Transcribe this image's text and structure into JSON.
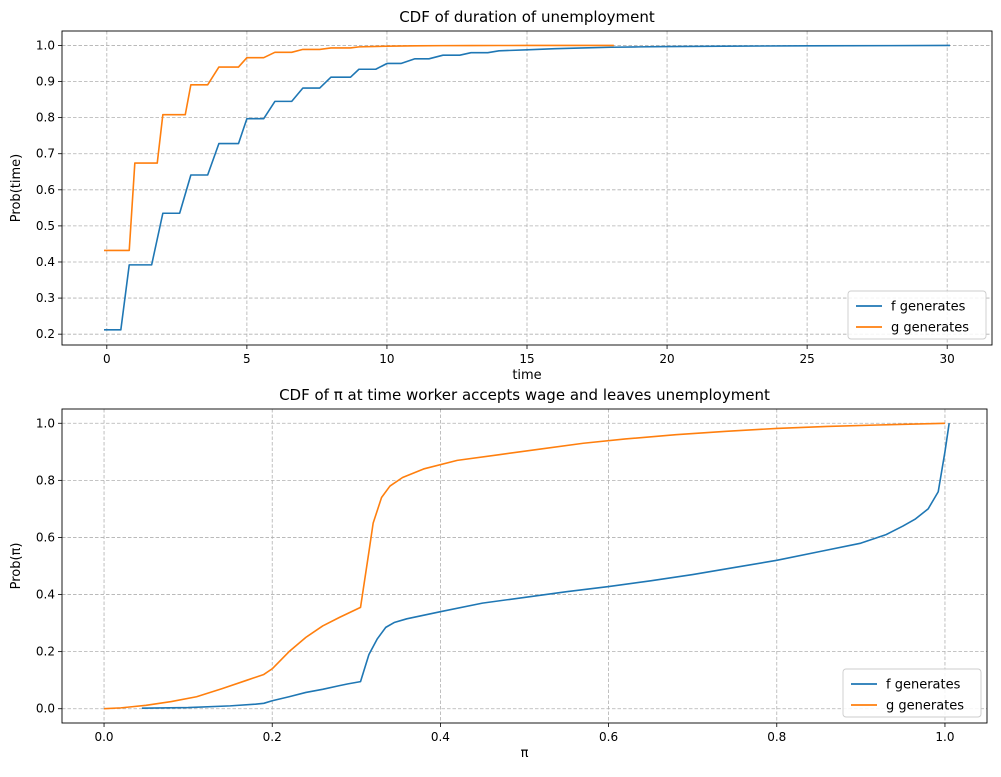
{
  "chart_data": [
    {
      "type": "line",
      "title": "CDF of duration of unemployment",
      "xlabel": "time",
      "ylabel": "Prob(time)",
      "xlim": [
        -1.6,
        31.6
      ],
      "ylim": [
        0.17,
        1.04
      ],
      "xticks": [
        0,
        5,
        10,
        15,
        20,
        25,
        30
      ],
      "yticks": [
        0.2,
        0.3,
        0.4,
        0.5,
        0.6,
        0.7,
        0.8,
        0.9,
        1.0
      ],
      "xtick_labels": [
        "0",
        "5",
        "10",
        "15",
        "20",
        "25",
        "30"
      ],
      "ytick_labels": [
        "0.2",
        "0.3",
        "0.4",
        "0.5",
        "0.6",
        "0.7",
        "0.8",
        "0.9",
        "1.0"
      ],
      "grid": true,
      "legend_position": "lower right",
      "series": [
        {
          "name": "f generates",
          "color": "#1f77b4",
          "x": [
            -0.1,
            0.5,
            0.8,
            1.6,
            2.0,
            2.6,
            3.0,
            3.6,
            4.0,
            4.7,
            5.0,
            5.6,
            6.0,
            6.6,
            7.0,
            7.6,
            8.0,
            8.7,
            9.0,
            9.6,
            10.0,
            10.5,
            11.0,
            11.5,
            12.0,
            12.6,
            13.0,
            13.6,
            14.0,
            15.0,
            16.0,
            17.0,
            18.0,
            19.0,
            20.0,
            22.0,
            25.0,
            28.0,
            30.1
          ],
          "y": [
            0.212,
            0.212,
            0.392,
            0.392,
            0.535,
            0.535,
            0.641,
            0.641,
            0.728,
            0.728,
            0.797,
            0.797,
            0.845,
            0.845,
            0.882,
            0.882,
            0.912,
            0.912,
            0.934,
            0.934,
            0.95,
            0.95,
            0.963,
            0.963,
            0.973,
            0.973,
            0.98,
            0.98,
            0.985,
            0.988,
            0.991,
            0.993,
            0.995,
            0.996,
            0.997,
            0.998,
            0.999,
            0.9995,
            1.0
          ]
        },
        {
          "name": "g generates",
          "color": "#ff7f0e",
          "x": [
            -0.1,
            0.8,
            1.0,
            1.8,
            2.0,
            2.8,
            3.0,
            3.6,
            4.0,
            4.7,
            5.0,
            5.6,
            6.0,
            6.6,
            7.0,
            7.6,
            8.0,
            8.7,
            9.0,
            10.0,
            11.0,
            12.0,
            13.0,
            14.0,
            15.0,
            16.0,
            17.0,
            18.1
          ],
          "y": [
            0.432,
            0.432,
            0.674,
            0.674,
            0.808,
            0.808,
            0.891,
            0.891,
            0.94,
            0.94,
            0.966,
            0.966,
            0.981,
            0.981,
            0.989,
            0.989,
            0.993,
            0.993,
            0.996,
            0.998,
            0.999,
            0.9995,
            0.9997,
            0.9998,
            0.9999,
            0.9999,
            1.0,
            1.0
          ]
        }
      ]
    },
    {
      "type": "line",
      "title": "CDF of π at time worker accepts wage and leaves unemployment",
      "xlabel": "π",
      "ylabel": "Prob(π)",
      "xlim": [
        -0.05,
        1.05
      ],
      "ylim": [
        -0.05,
        1.05
      ],
      "xticks": [
        0.0,
        0.2,
        0.4,
        0.6,
        0.8,
        1.0
      ],
      "yticks": [
        0.0,
        0.2,
        0.4,
        0.6,
        0.8,
        1.0
      ],
      "xtick_labels": [
        "0.0",
        "0.2",
        "0.4",
        "0.6",
        "0.8",
        "1.0"
      ],
      "ytick_labels": [
        "0.0",
        "0.2",
        "0.4",
        "0.6",
        "0.8",
        "1.0"
      ],
      "grid": true,
      "legend_position": "lower right",
      "series": [
        {
          "name": "f generates",
          "color": "#1f77b4",
          "x": [
            0.045,
            0.1,
            0.15,
            0.18,
            0.19,
            0.2,
            0.22,
            0.24,
            0.26,
            0.28,
            0.29,
            0.305,
            0.315,
            0.325,
            0.335,
            0.345,
            0.36,
            0.4,
            0.45,
            0.5,
            0.55,
            0.6,
            0.65,
            0.7,
            0.75,
            0.8,
            0.85,
            0.9,
            0.93,
            0.95,
            0.965,
            0.98,
            0.992,
            1.0,
            1.005
          ],
          "y": [
            0.002,
            0.004,
            0.01,
            0.016,
            0.019,
            0.028,
            0.042,
            0.057,
            0.068,
            0.081,
            0.087,
            0.095,
            0.19,
            0.245,
            0.285,
            0.302,
            0.315,
            0.34,
            0.37,
            0.39,
            0.41,
            0.428,
            0.448,
            0.47,
            0.495,
            0.52,
            0.55,
            0.58,
            0.61,
            0.64,
            0.665,
            0.7,
            0.76,
            0.9,
            1.0
          ]
        },
        {
          "name": "g generates",
          "color": "#ff7f0e",
          "x": [
            0.0,
            0.02,
            0.05,
            0.08,
            0.11,
            0.14,
            0.17,
            0.19,
            0.2,
            0.22,
            0.24,
            0.26,
            0.28,
            0.3,
            0.305,
            0.315,
            0.32,
            0.33,
            0.34,
            0.355,
            0.38,
            0.42,
            0.47,
            0.52,
            0.57,
            0.62,
            0.68,
            0.74,
            0.8,
            0.86,
            0.92,
            1.0
          ],
          "y": [
            0.0,
            0.003,
            0.012,
            0.025,
            0.042,
            0.07,
            0.1,
            0.12,
            0.14,
            0.2,
            0.25,
            0.29,
            0.32,
            0.348,
            0.355,
            0.55,
            0.65,
            0.74,
            0.78,
            0.81,
            0.84,
            0.87,
            0.89,
            0.91,
            0.93,
            0.945,
            0.96,
            0.972,
            0.982,
            0.989,
            0.994,
            1.0
          ]
        }
      ]
    }
  ]
}
